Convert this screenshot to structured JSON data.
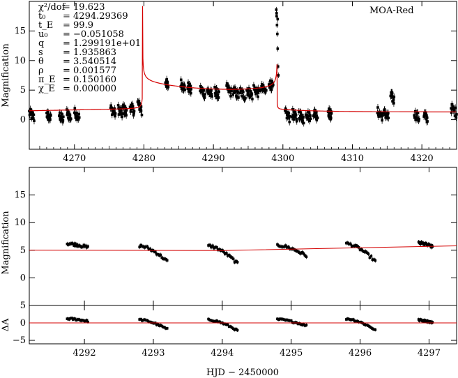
{
  "chart_data": [
    {
      "type": "scatter",
      "name": "full-lightcurve",
      "ylabel": "Magnification",
      "xlabel": "",
      "legend": "MOA-Red",
      "xlim": [
        4263.5,
        4325
      ],
      "ylim": [
        -5,
        20
      ],
      "xticks": [
        4270,
        4280,
        4290,
        4300,
        4310,
        4320
      ],
      "xtick_labels": [
        "4270",
        "4280",
        "4290",
        "4300",
        "4310",
        "4320"
      ],
      "yticks": [
        0,
        5,
        10,
        15
      ],
      "ytick_labels": [
        "0",
        "5",
        "10",
        "15"
      ],
      "params": [
        {
          "name": "χ²/dof",
          "value": "19.623"
        },
        {
          "name": "t₀",
          "value": "4294.29369"
        },
        {
          "name": "t_E",
          "value": "99.9"
        },
        {
          "name": "u₀",
          "value": "−0.051058"
        },
        {
          "name": "q",
          "value": "1.299191e+01"
        },
        {
          "name": "s",
          "value": "1.935863"
        },
        {
          "name": "θ",
          "value": "3.540514"
        },
        {
          "name": "ρ",
          "value": "0.001577"
        },
        {
          "name": "π_E",
          "value": "0.150160"
        },
        {
          "name": "χ_E",
          "value": "0.000000"
        }
      ],
      "model": {
        "baseline": 1.5,
        "caustic_entry": 4279.8,
        "caustic_exit": 4299.2,
        "peak_entry": 19.0,
        "peak_exit": 18.5
      },
      "data_clusters": [
        {
          "x0": 4263.5,
          "x1": 4264.2,
          "y": 1.2
        },
        {
          "x0": 4266.0,
          "x1": 4266.6,
          "y": 1.0
        },
        {
          "x0": 4267.8,
          "x1": 4268.4,
          "y": 0.8
        },
        {
          "x0": 4268.9,
          "x1": 4269.5,
          "y": 1.2
        },
        {
          "x0": 4270.0,
          "x1": 4270.7,
          "y": 1.3
        },
        {
          "x0": 4275.2,
          "x1": 4275.9,
          "y": 1.9
        },
        {
          "x0": 4276.3,
          "x1": 4276.9,
          "y": 1.8
        },
        {
          "x0": 4277.0,
          "x1": 4277.5,
          "y": 2.0
        },
        {
          "x0": 4278.0,
          "x1": 4278.6,
          "y": 2.3
        },
        {
          "x0": 4279.1,
          "x1": 4279.6,
          "y": 2.8
        },
        {
          "x0": 4283.1,
          "x1": 4283.5,
          "y": 6.5
        },
        {
          "x0": 4285.3,
          "x1": 4285.9,
          "y": 6.2
        },
        {
          "x0": 4286.3,
          "x1": 4286.8,
          "y": 5.7
        },
        {
          "x0": 4288.1,
          "x1": 4288.8,
          "y": 5.2
        },
        {
          "x0": 4289.1,
          "x1": 4289.8,
          "y": 5.0
        },
        {
          "x0": 4290.2,
          "x1": 4290.8,
          "y": 4.9
        },
        {
          "x0": 4291.9,
          "x1": 4292.6,
          "y": 5.4
        },
        {
          "x0": 4292.8,
          "x1": 4293.6,
          "y": 5.0
        },
        {
          "x0": 4293.8,
          "x1": 4294.6,
          "y": 4.8
        },
        {
          "x0": 4294.8,
          "x1": 4295.6,
          "y": 5.0
        },
        {
          "x0": 4295.8,
          "x1": 4296.6,
          "y": 5.3
        },
        {
          "x0": 4296.8,
          "x1": 4297.6,
          "y": 5.5
        },
        {
          "x0": 4298.0,
          "x1": 4298.6,
          "y": 6.3
        },
        {
          "x0": 4300.3,
          "x1": 4301.0,
          "y": 1.2
        },
        {
          "x0": 4301.3,
          "x1": 4302.0,
          "y": 1.1
        },
        {
          "x0": 4302.3,
          "x1": 4303.0,
          "y": 1.0
        },
        {
          "x0": 4303.3,
          "x1": 4304.0,
          "y": 1.2
        },
        {
          "x0": 4304.4,
          "x1": 4305.0,
          "y": 1.4
        },
        {
          "x0": 4306.5,
          "x1": 4307.0,
          "y": 1.5
        },
        {
          "x0": 4313.6,
          "x1": 4314.4,
          "y": 1.4
        },
        {
          "x0": 4314.6,
          "x1": 4315.2,
          "y": 1.2
        },
        {
          "x0": 4315.5,
          "x1": 4316.0,
          "y": 4.2
        },
        {
          "x0": 4318.9,
          "x1": 4319.6,
          "y": 1.1
        },
        {
          "x0": 4320.3,
          "x1": 4320.8,
          "y": 1.0
        },
        {
          "x0": 4324.2,
          "x1": 4325.0,
          "y": 2.0
        }
      ]
    },
    {
      "type": "scatter",
      "name": "zoom-lightcurve",
      "ylabel": "Magnification",
      "xlim": [
        4291.2,
        4297.4
      ],
      "ylim": [
        -5,
        20
      ],
      "yticks": [
        0,
        5,
        10,
        15
      ],
      "ytick_labels": [
        "0",
        "5",
        "10",
        "15"
      ],
      "model_line": [
        [
          4291.2,
          5.0
        ],
        [
          4294.0,
          4.95
        ],
        [
          4297.4,
          5.8
        ]
      ],
      "nights": [
        {
          "x0": 4291.75,
          "x1": 4292.05,
          "y0": 6.2,
          "y1": 5.5
        },
        {
          "x0": 4292.8,
          "x1": 4293.2,
          "y0": 5.8,
          "y1": 3.0
        },
        {
          "x0": 4293.8,
          "x1": 4294.22,
          "y0": 5.8,
          "y1": 2.6
        },
        {
          "x0": 4294.8,
          "x1": 4295.22,
          "y0": 5.9,
          "y1": 4.0
        },
        {
          "x0": 4295.8,
          "x1": 4296.22,
          "y0": 6.2,
          "y1": 3.0
        },
        {
          "x0": 4296.85,
          "x1": 4297.05,
          "y0": 6.3,
          "y1": 5.6
        }
      ]
    },
    {
      "type": "scatter",
      "name": "residuals",
      "ylabel": "ΔA",
      "xlabel": "HJD − 2450000",
      "xlim": [
        4291.2,
        4297.4
      ],
      "ylim": [
        -6,
        5
      ],
      "xticks": [
        4292,
        4293,
        4294,
        4295,
        4296,
        4297
      ],
      "xtick_labels": [
        "4292",
        "4293",
        "4294",
        "4295",
        "4296",
        "4297"
      ],
      "yticks": [
        -5,
        0,
        5
      ],
      "ytick_labels": [
        "−5",
        "0",
        "5"
      ],
      "nights": [
        {
          "x0": 4291.75,
          "x1": 4292.05,
          "y0": 1.2,
          "y1": 0.5
        },
        {
          "x0": 4292.8,
          "x1": 4293.2,
          "y0": 0.9,
          "y1": -1.8
        },
        {
          "x0": 4293.8,
          "x1": 4294.22,
          "y0": 0.9,
          "y1": -2.2
        },
        {
          "x0": 4294.8,
          "x1": 4295.22,
          "y0": 1.0,
          "y1": -0.8
        },
        {
          "x0": 4295.8,
          "x1": 4296.22,
          "y0": 1.2,
          "y1": -2.0
        },
        {
          "x0": 4296.85,
          "x1": 4297.05,
          "y0": 0.8,
          "y1": 0.1
        }
      ]
    }
  ],
  "colors": {
    "model": "#d40000",
    "data": "#000000",
    "frame": "#000000"
  }
}
